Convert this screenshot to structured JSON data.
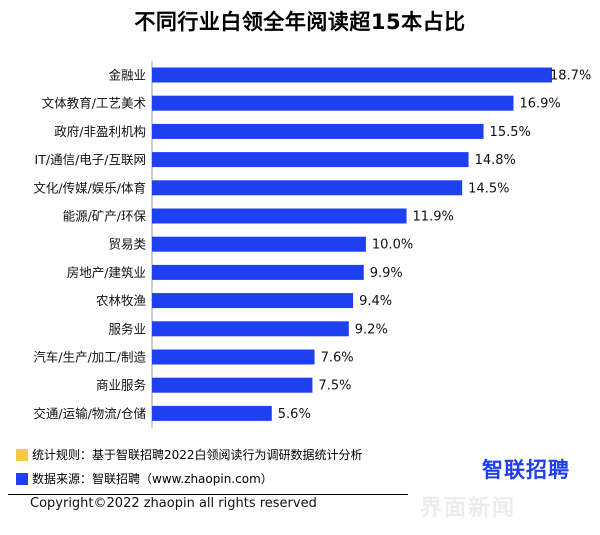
{
  "chart_data": {
    "type": "bar",
    "orientation": "horizontal",
    "title": "不同行业白领全年阅读超15本占比",
    "categories": [
      "金融业",
      "文体教育/工艺美术",
      "政府/非盈利机构",
      "IT/通信/电子/互联网",
      "文化/传媒/娱乐/体育",
      "能源/矿产/环保",
      "贸易类",
      "房地产/建筑业",
      "农林牧渔",
      "服务业",
      "汽车/生产/加工/制造",
      "商业服务",
      "交通/运输/物流/仓储"
    ],
    "values": [
      18.7,
      16.9,
      15.5,
      14.8,
      14.5,
      11.9,
      10.0,
      9.9,
      9.4,
      9.2,
      7.6,
      7.5,
      5.6
    ],
    "value_labels": [
      "18.7%",
      "16.9%",
      "15.5%",
      "14.8%",
      "14.5%",
      "11.9%",
      "10.0%",
      "9.9%",
      "9.4%",
      "9.2%",
      "7.6%",
      "7.5%",
      "5.6%"
    ],
    "xlim": [
      0,
      18.7
    ],
    "bar_color": "#1f3ff2"
  },
  "footer": {
    "note1": "统计规则：基于智联招聘2022白领阅读行为调研数据统计分析",
    "note1_color": "#f5c84a",
    "note2": "数据来源：智联招聘（www.zhaopin.com）",
    "note2_color": "#1f3ff2",
    "logo": "智联招聘",
    "copyright": "Copyright©2022 zhaopin all rights reserved",
    "watermark": "界面新闻"
  }
}
